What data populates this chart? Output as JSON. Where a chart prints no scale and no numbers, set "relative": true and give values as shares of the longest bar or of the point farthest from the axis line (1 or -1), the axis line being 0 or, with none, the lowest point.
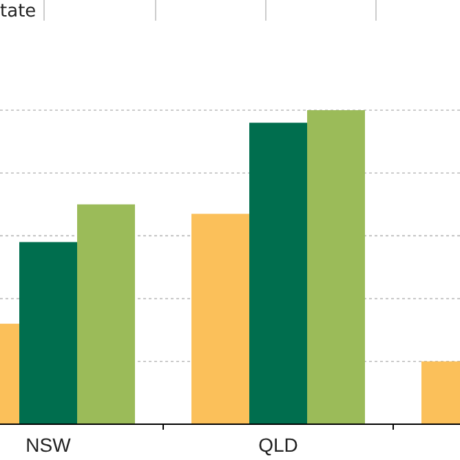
{
  "chart_data": {
    "type": "bar",
    "title": "tate",
    "categories": [
      "NSW",
      "QLD",
      null
    ],
    "relative": true,
    "grid": "y",
    "series": [
      {
        "color": "#fbc05a",
        "values": [
          0.32,
          0.67,
          0.2
        ]
      },
      {
        "color": "#006e4e",
        "values": [
          0.58,
          0.96,
          null
        ]
      },
      {
        "color": "#9bbb59",
        "values": [
          0.7,
          1,
          null
        ]
      }
    ]
  }
}
